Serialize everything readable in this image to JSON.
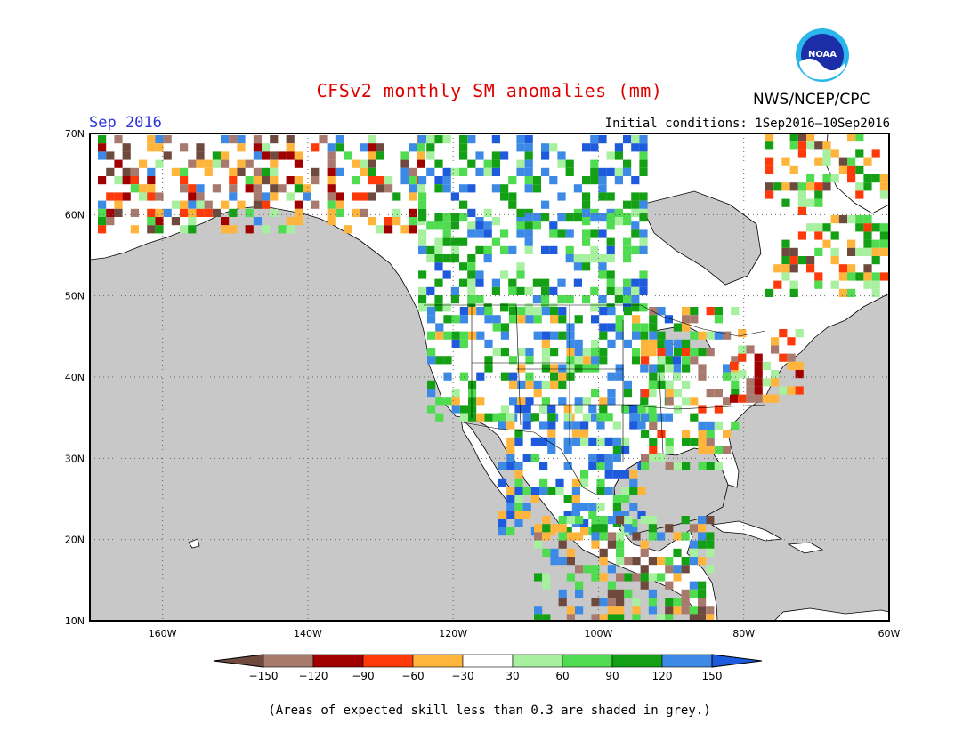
{
  "title": "CFSv2 monthly SM anomalies (mm)",
  "agency": "NWS/NCEP/CPC",
  "logo_text": "NOAA",
  "month_label": "Sep 2016",
  "initial_conditions": "Initial conditions: 1Sep2016–10Sep2016",
  "footnote": "(Areas of expected skill less than 0.3 are shaded in grey.)",
  "map": {
    "lon_range": [
      -170,
      -60
    ],
    "lat_range": [
      10,
      70
    ],
    "lat_ticks": [
      "70N",
      "60N",
      "50N",
      "40N",
      "30N",
      "20N",
      "10N"
    ],
    "lon_ticks": [
      "160W",
      "140W",
      "120W",
      "100W",
      "80W",
      "60W"
    ],
    "ocean_color": "#c8c8c8",
    "grid": "dotted"
  },
  "colorbar": {
    "labels": [
      "−150",
      "−120",
      "−90",
      "−60",
      "−30",
      "30",
      "60",
      "90",
      "120",
      "150"
    ],
    "colors": [
      "#6e4a3e",
      "#a87a6e",
      "#a00000",
      "#ff3a0a",
      "#ffb43c",
      "#ffffff",
      "#a6f0a0",
      "#50dc50",
      "#14a014",
      "#3c8ae6",
      "#1e5adc"
    ]
  }
}
